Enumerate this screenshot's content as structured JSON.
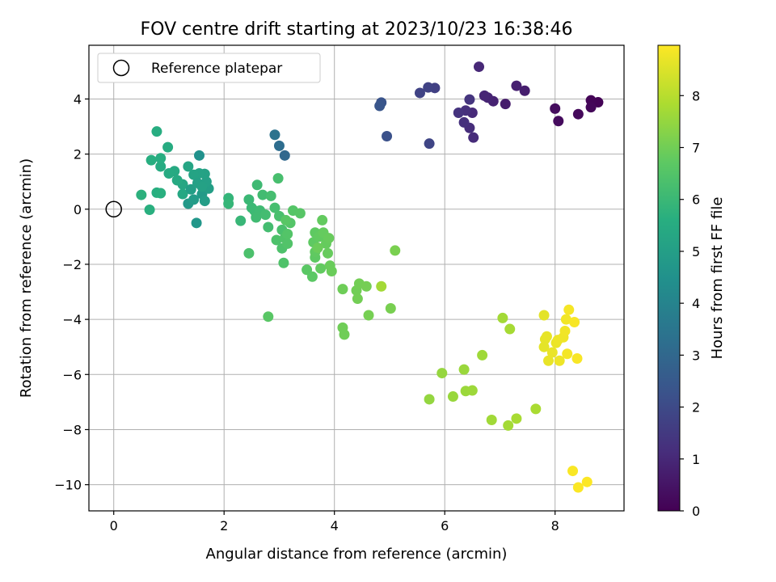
{
  "chart_data": {
    "type": "scatter",
    "title": "FOV centre drift starting at 2023/10/23 16:38:46",
    "xlabel": "Angular distance from reference (arcmin)",
    "ylabel": "Rotation from reference (arcmin)",
    "xlim": [
      -0.45,
      9.25
    ],
    "ylim": [
      -10.95,
      5.95
    ],
    "xticks": [
      0,
      2,
      4,
      6,
      8
    ],
    "xtick_labels": [
      "0",
      "2",
      "4",
      "6",
      "8"
    ],
    "yticks": [
      4,
      2,
      0,
      -2,
      -4,
      -6,
      -8,
      -10
    ],
    "ytick_labels": [
      "4",
      "2",
      "0",
      "−2",
      "−4",
      "−6",
      "−8",
      "−10"
    ],
    "grid": true,
    "legend": {
      "placement": "top-left",
      "entries": [
        {
          "label": "Reference platepar",
          "marker": "open-circle"
        }
      ]
    },
    "reference_point": {
      "x": 0,
      "y": 0
    },
    "colorbar": {
      "label": "Hours from first FF file",
      "colormap": "viridis",
      "range": [
        0,
        8.97
      ],
      "ticks": [
        0,
        1,
        2,
        3,
        4,
        5,
        6,
        7,
        8
      ],
      "tick_labels": [
        "0",
        "1",
        "2",
        "3",
        "4",
        "5",
        "6",
        "7",
        "8"
      ]
    },
    "points": [
      {
        "x": 8.78,
        "y": 3.88,
        "c": 0.05
      },
      {
        "x": 8.65,
        "y": 3.95,
        "c": 0.1
      },
      {
        "x": 8.65,
        "y": 3.7,
        "c": 0.15
      },
      {
        "x": 8.42,
        "y": 3.45,
        "c": 0.2
      },
      {
        "x": 8.06,
        "y": 3.2,
        "c": 0.25
      },
      {
        "x": 8.0,
        "y": 3.65,
        "c": 0.3
      },
      {
        "x": 7.1,
        "y": 3.82,
        "c": 0.7
      },
      {
        "x": 7.45,
        "y": 4.3,
        "c": 0.75
      },
      {
        "x": 7.3,
        "y": 4.48,
        "c": 0.8
      },
      {
        "x": 6.88,
        "y": 3.92,
        "c": 0.85
      },
      {
        "x": 6.78,
        "y": 4.05,
        "c": 0.9
      },
      {
        "x": 6.72,
        "y": 4.12,
        "c": 0.95
      },
      {
        "x": 6.62,
        "y": 5.17,
        "c": 1.0
      },
      {
        "x": 6.5,
        "y": 3.5,
        "c": 1.05
      },
      {
        "x": 6.52,
        "y": 2.6,
        "c": 1.1
      },
      {
        "x": 6.45,
        "y": 2.95,
        "c": 1.15
      },
      {
        "x": 6.38,
        "y": 3.58,
        "c": 1.2
      },
      {
        "x": 6.35,
        "y": 3.15,
        "c": 1.25
      },
      {
        "x": 6.25,
        "y": 3.5,
        "c": 1.3
      },
      {
        "x": 6.45,
        "y": 3.98,
        "c": 1.35
      },
      {
        "x": 5.82,
        "y": 4.4,
        "c": 1.7
      },
      {
        "x": 5.7,
        "y": 4.42,
        "c": 1.75
      },
      {
        "x": 5.55,
        "y": 4.22,
        "c": 1.8
      },
      {
        "x": 5.72,
        "y": 2.38,
        "c": 1.85
      },
      {
        "x": 4.95,
        "y": 2.65,
        "c": 2.2
      },
      {
        "x": 4.85,
        "y": 3.87,
        "c": 2.3
      },
      {
        "x": 4.82,
        "y": 3.75,
        "c": 2.4
      },
      {
        "x": 3.1,
        "y": 1.95,
        "c": 3.0
      },
      {
        "x": 3.0,
        "y": 2.3,
        "c": 3.2
      },
      {
        "x": 2.92,
        "y": 2.7,
        "c": 3.4
      },
      {
        "x": 1.55,
        "y": 1.95,
        "c": 4.5
      },
      {
        "x": 1.5,
        "y": -0.5,
        "c": 4.7
      },
      {
        "x": 1.35,
        "y": 0.2,
        "c": 4.8
      },
      {
        "x": 1.6,
        "y": 0.55,
        "c": 4.85
      },
      {
        "x": 1.45,
        "y": 0.35,
        "c": 4.9
      },
      {
        "x": 1.65,
        "y": 0.3,
        "c": 4.95
      },
      {
        "x": 1.72,
        "y": 0.75,
        "c": 5.0
      },
      {
        "x": 1.68,
        "y": 1.0,
        "c": 5.05
      },
      {
        "x": 1.65,
        "y": 1.28,
        "c": 5.1
      },
      {
        "x": 1.55,
        "y": 1.3,
        "c": 5.15
      },
      {
        "x": 1.45,
        "y": 1.25,
        "c": 5.2
      },
      {
        "x": 1.35,
        "y": 1.55,
        "c": 5.25
      },
      {
        "x": 1.25,
        "y": 0.9,
        "c": 5.3
      },
      {
        "x": 1.25,
        "y": 0.55,
        "c": 5.35
      },
      {
        "x": 1.15,
        "y": 1.05,
        "c": 5.4
      },
      {
        "x": 1.1,
        "y": 1.38,
        "c": 5.4
      },
      {
        "x": 1.0,
        "y": 1.3,
        "c": 5.45
      },
      {
        "x": 0.98,
        "y": 2.25,
        "c": 5.5
      },
      {
        "x": 0.85,
        "y": 1.55,
        "c": 5.5
      },
      {
        "x": 0.85,
        "y": 1.85,
        "c": 5.55
      },
      {
        "x": 0.78,
        "y": 2.82,
        "c": 5.55
      },
      {
        "x": 0.68,
        "y": 1.78,
        "c": 5.6
      },
      {
        "x": 0.78,
        "y": 0.6,
        "c": 5.6
      },
      {
        "x": 0.85,
        "y": 0.58,
        "c": 5.65
      },
      {
        "x": 0.65,
        "y": -0.02,
        "c": 5.65
      },
      {
        "x": 0.5,
        "y": 0.52,
        "c": 5.7
      },
      {
        "x": 1.4,
        "y": 0.72,
        "c": 5.0
      },
      {
        "x": 1.52,
        "y": 0.95,
        "c": 5.05
      },
      {
        "x": 1.6,
        "y": 0.82,
        "c": 5.1
      },
      {
        "x": 2.08,
        "y": 0.4,
        "c": 5.85
      },
      {
        "x": 2.08,
        "y": 0.2,
        "c": 5.9
      },
      {
        "x": 2.3,
        "y": -0.42,
        "c": 5.95
      },
      {
        "x": 2.45,
        "y": 0.35,
        "c": 6.0
      },
      {
        "x": 2.5,
        "y": 0.05,
        "c": 6.02
      },
      {
        "x": 2.55,
        "y": -0.05,
        "c": 6.05
      },
      {
        "x": 2.6,
        "y": 0.88,
        "c": 6.08
      },
      {
        "x": 2.65,
        "y": -0.05,
        "c": 6.1
      },
      {
        "x": 2.58,
        "y": -0.3,
        "c": 6.12
      },
      {
        "x": 2.7,
        "y": 0.52,
        "c": 6.15
      },
      {
        "x": 2.75,
        "y": -0.2,
        "c": 6.18
      },
      {
        "x": 2.8,
        "y": -0.65,
        "c": 6.2
      },
      {
        "x": 2.85,
        "y": 0.48,
        "c": 6.22
      },
      {
        "x": 2.92,
        "y": 0.05,
        "c": 6.25
      },
      {
        "x": 2.98,
        "y": 1.12,
        "c": 6.28
      },
      {
        "x": 3.0,
        "y": -0.25,
        "c": 6.3
      },
      {
        "x": 3.05,
        "y": -0.75,
        "c": 6.32
      },
      {
        "x": 2.45,
        "y": -1.6,
        "c": 6.35
      },
      {
        "x": 2.95,
        "y": -1.12,
        "c": 6.38
      },
      {
        "x": 3.05,
        "y": -1.42,
        "c": 6.4
      },
      {
        "x": 3.08,
        "y": -1.95,
        "c": 6.42
      },
      {
        "x": 3.1,
        "y": -1.05,
        "c": 6.45
      },
      {
        "x": 3.15,
        "y": -1.25,
        "c": 6.48
      },
      {
        "x": 3.15,
        "y": -0.9,
        "c": 6.5
      },
      {
        "x": 3.2,
        "y": -0.5,
        "c": 6.52
      },
      {
        "x": 3.25,
        "y": -0.05,
        "c": 6.55
      },
      {
        "x": 3.38,
        "y": -0.15,
        "c": 6.58
      },
      {
        "x": 3.12,
        "y": -0.4,
        "c": 6.6
      },
      {
        "x": 2.8,
        "y": -3.9,
        "c": 6.62
      },
      {
        "x": 3.5,
        "y": -2.2,
        "c": 6.65
      },
      {
        "x": 3.6,
        "y": -2.45,
        "c": 6.67
      },
      {
        "x": 3.65,
        "y": -1.75,
        "c": 6.7
      },
      {
        "x": 3.65,
        "y": -0.85,
        "c": 6.72
      },
      {
        "x": 3.62,
        "y": -1.2,
        "c": 6.73
      },
      {
        "x": 3.65,
        "y": -1.55,
        "c": 6.75
      },
      {
        "x": 3.72,
        "y": -1.0,
        "c": 6.77
      },
      {
        "x": 3.75,
        "y": -2.15,
        "c": 6.78
      },
      {
        "x": 3.78,
        "y": -0.4,
        "c": 6.8
      },
      {
        "x": 3.8,
        "y": -0.85,
        "c": 6.82
      },
      {
        "x": 3.85,
        "y": -1.25,
        "c": 6.83
      },
      {
        "x": 3.88,
        "y": -1.6,
        "c": 6.85
      },
      {
        "x": 3.9,
        "y": -1.05,
        "c": 6.87
      },
      {
        "x": 3.92,
        "y": -2.05,
        "c": 6.88
      },
      {
        "x": 3.95,
        "y": -2.25,
        "c": 6.9
      },
      {
        "x": 3.7,
        "y": -1.4,
        "c": 6.91
      },
      {
        "x": 4.15,
        "y": -2.9,
        "c": 6.95
      },
      {
        "x": 4.15,
        "y": -4.3,
        "c": 6.97
      },
      {
        "x": 4.18,
        "y": -4.55,
        "c": 6.98
      },
      {
        "x": 4.4,
        "y": -2.95,
        "c": 7.0
      },
      {
        "x": 4.45,
        "y": -2.7,
        "c": 7.02
      },
      {
        "x": 4.42,
        "y": -3.25,
        "c": 7.03
      },
      {
        "x": 4.58,
        "y": -2.8,
        "c": 7.05
      },
      {
        "x": 4.62,
        "y": -3.85,
        "c": 7.07
      },
      {
        "x": 4.85,
        "y": -2.8,
        "c": 7.7
      },
      {
        "x": 5.02,
        "y": -3.6,
        "c": 7.1
      },
      {
        "x": 5.1,
        "y": -1.5,
        "c": 7.12
      },
      {
        "x": 5.72,
        "y": -6.9,
        "c": 7.5
      },
      {
        "x": 5.95,
        "y": -5.95,
        "c": 7.52
      },
      {
        "x": 6.15,
        "y": -6.8,
        "c": 7.55
      },
      {
        "x": 6.35,
        "y": -5.82,
        "c": 7.58
      },
      {
        "x": 6.38,
        "y": -6.6,
        "c": 7.6
      },
      {
        "x": 6.5,
        "y": -6.58,
        "c": 7.62
      },
      {
        "x": 6.68,
        "y": -5.3,
        "c": 7.65
      },
      {
        "x": 6.85,
        "y": -7.65,
        "c": 7.68
      },
      {
        "x": 7.05,
        "y": -3.95,
        "c": 7.7
      },
      {
        "x": 7.15,
        "y": -7.85,
        "c": 7.72
      },
      {
        "x": 7.18,
        "y": -4.35,
        "c": 7.75
      },
      {
        "x": 7.3,
        "y": -7.6,
        "c": 7.78
      },
      {
        "x": 7.65,
        "y": -7.25,
        "c": 7.8
      },
      {
        "x": 7.8,
        "y": -3.85,
        "c": 8.6
      },
      {
        "x": 7.8,
        "y": -5.0,
        "c": 8.62
      },
      {
        "x": 7.82,
        "y": -4.72,
        "c": 8.64
      },
      {
        "x": 7.85,
        "y": -4.62,
        "c": 8.66
      },
      {
        "x": 7.88,
        "y": -5.5,
        "c": 8.68
      },
      {
        "x": 7.95,
        "y": -5.2,
        "c": 8.7
      },
      {
        "x": 8.02,
        "y": -4.85,
        "c": 8.72
      },
      {
        "x": 8.05,
        "y": -4.75,
        "c": 8.74
      },
      {
        "x": 8.08,
        "y": -5.5,
        "c": 8.76
      },
      {
        "x": 8.15,
        "y": -4.65,
        "c": 8.78
      },
      {
        "x": 8.18,
        "y": -4.42,
        "c": 8.8
      },
      {
        "x": 8.2,
        "y": -4.0,
        "c": 8.82
      },
      {
        "x": 8.22,
        "y": -5.25,
        "c": 8.84
      },
      {
        "x": 8.25,
        "y": -3.65,
        "c": 8.86
      },
      {
        "x": 8.35,
        "y": -4.1,
        "c": 8.88
      },
      {
        "x": 8.4,
        "y": -5.42,
        "c": 8.9
      },
      {
        "x": 8.32,
        "y": -9.5,
        "c": 8.92
      },
      {
        "x": 8.42,
        "y": -10.1,
        "c": 8.94
      },
      {
        "x": 8.58,
        "y": -9.9,
        "c": 8.96
      }
    ]
  }
}
